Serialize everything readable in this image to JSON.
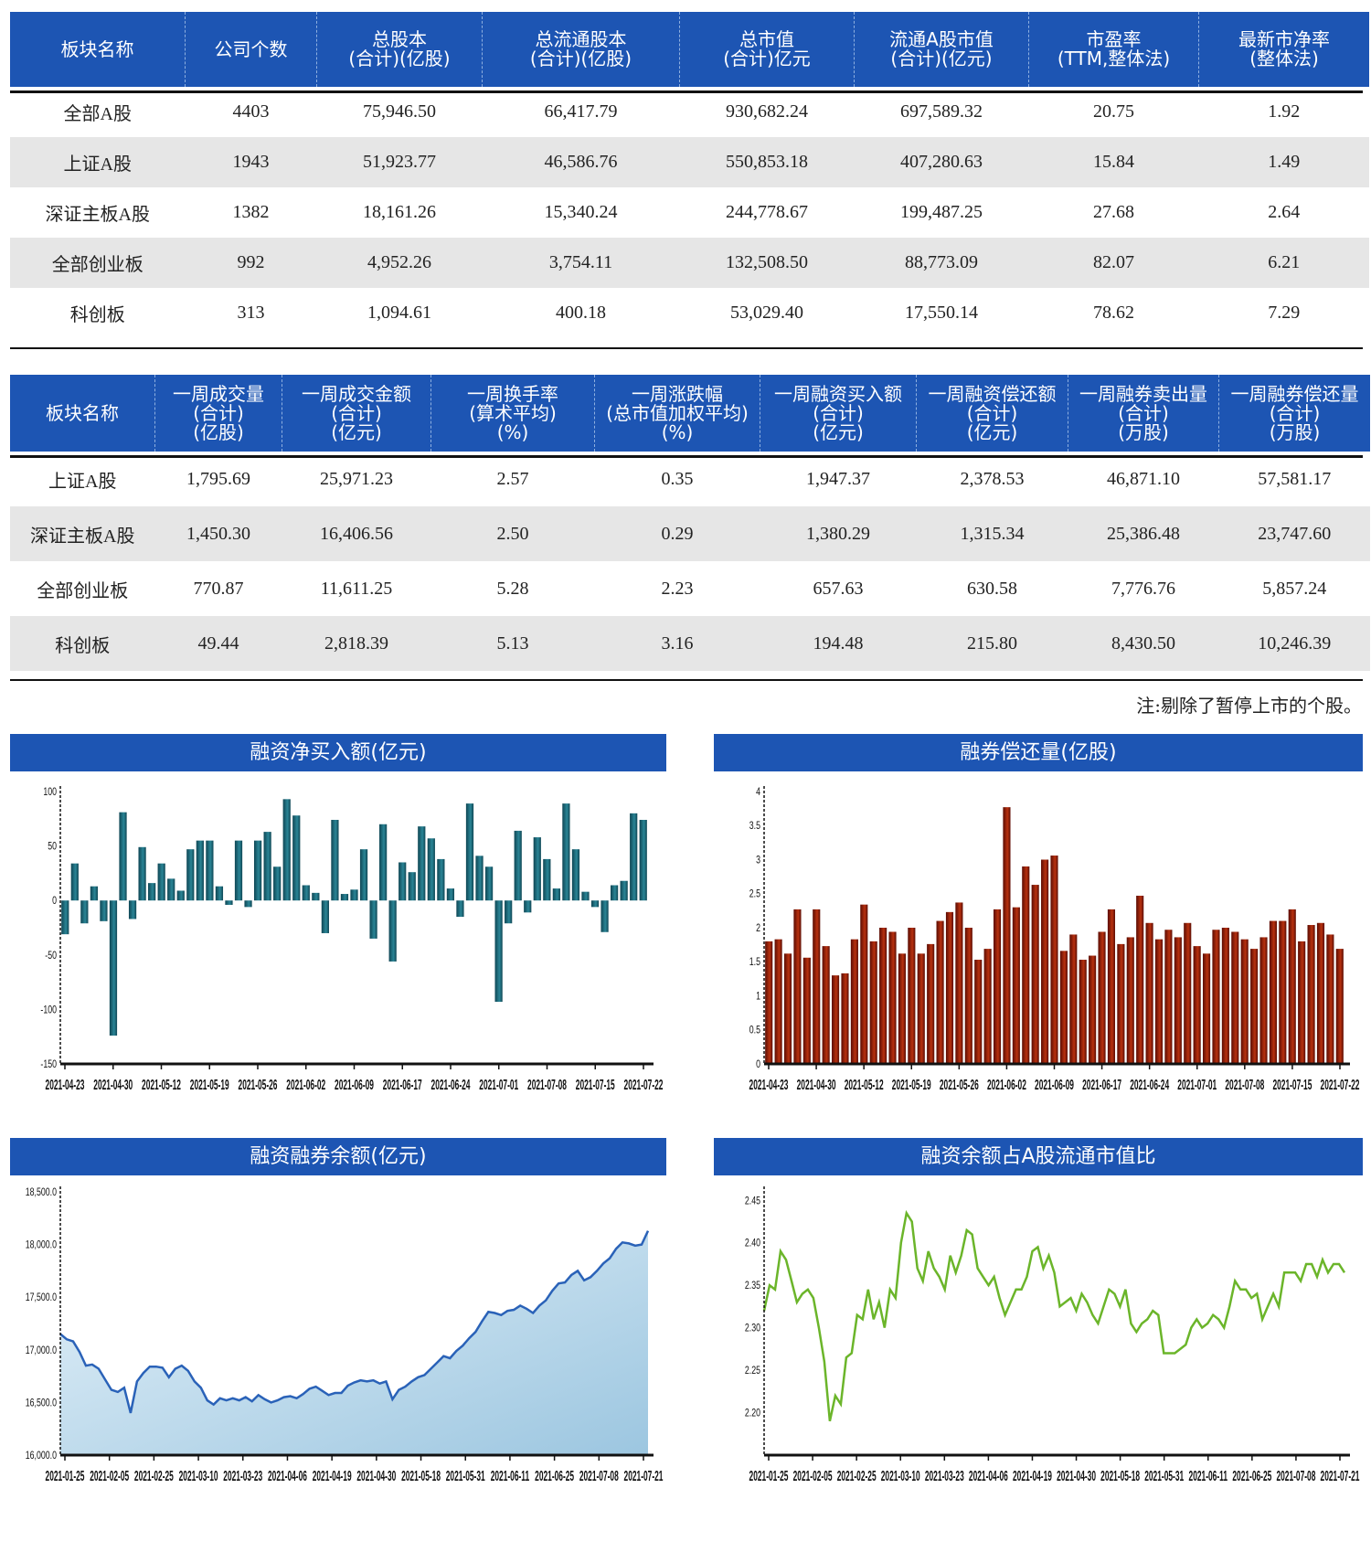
{
  "table1": {
    "headers": [
      [
        "板块名称",
        ""
      ],
      [
        "公司个数",
        ""
      ],
      [
        "总股本",
        "(合计)(亿股)"
      ],
      [
        "总流通股本",
        "(合计)(亿股)"
      ],
      [
        "总市值",
        "(合计)亿元"
      ],
      [
        "流通A股市值",
        "(合计)(亿元)"
      ],
      [
        "市盈率",
        "(TTM,整体法)"
      ],
      [
        "最新市净率",
        "(整体法)"
      ]
    ],
    "rows": [
      [
        "全部A股",
        "4403",
        "75,946.50",
        "66,417.79",
        "930,682.24",
        "697,589.32",
        "20.75",
        "1.92"
      ],
      [
        "上证A股",
        "1943",
        "51,923.77",
        "46,586.76",
        "550,853.18",
        "407,280.63",
        "15.84",
        "1.49"
      ],
      [
        "深证主板A股",
        "1382",
        "18,161.26",
        "15,340.24",
        "244,778.67",
        "199,487.25",
        "27.68",
        "2.64"
      ],
      [
        "全部创业板",
        "992",
        "4,952.26",
        "3,754.11",
        "132,508.50",
        "88,773.09",
        "82.07",
        "6.21"
      ],
      [
        "科创板",
        "313",
        "1,094.61",
        "400.18",
        "53,029.40",
        "17,550.14",
        "78.62",
        "7.29"
      ]
    ]
  },
  "table2": {
    "headers": [
      [
        "板块名称",
        "",
        ""
      ],
      [
        "一周成交量",
        "(合计)",
        "(亿股)"
      ],
      [
        "一周成交金额",
        "(合计)",
        "(亿元)"
      ],
      [
        "一周换手率",
        "(算术平均)",
        "(%)"
      ],
      [
        "一周涨跌幅",
        "(总市值加权平均)",
        "(%)"
      ],
      [
        "一周融资买入额",
        "(合计)",
        "(亿元)"
      ],
      [
        "一周融资偿还额",
        "(合计)",
        "(亿元)"
      ],
      [
        "一周融券卖出量",
        "(合计)",
        "(万股)"
      ],
      [
        "一周融券偿还量",
        "(合计)",
        "(万股)"
      ]
    ],
    "rows": [
      [
        "上证A股",
        "1,795.69",
        "25,971.23",
        "2.57",
        "0.35",
        "1,947.37",
        "2,378.53",
        "46,871.10",
        "57,581.17"
      ],
      [
        "深证主板A股",
        "1,450.30",
        "16,406.56",
        "2.50",
        "0.29",
        "1,380.29",
        "1,315.34",
        "25,386.48",
        "23,747.60"
      ],
      [
        "全部创业板",
        "770.87",
        "11,611.25",
        "5.28",
        "2.23",
        "657.63",
        "630.58",
        "7,776.76",
        "5,857.24"
      ],
      [
        "科创板",
        "49.44",
        "2,818.39",
        "5.13",
        "3.16",
        "194.48",
        "215.80",
        "8,430.50",
        "10,246.39"
      ]
    ]
  },
  "note": "注:剔除了暂停上市的个股。",
  "colors": {
    "header": "#1d55b3",
    "bar_teal": "#1f6e7e",
    "bar_red": "#8b1a0a",
    "line_blue": "#2a62b8",
    "line_green": "#6bb52a",
    "area_fill": "#a9cde6"
  },
  "chart_data": [
    {
      "type": "bar",
      "title": "融资净买入额(亿元)",
      "ylim": [
        -150,
        100
      ],
      "yticks": [
        100,
        50,
        0,
        -50,
        -100,
        -150
      ],
      "xticks": [
        "2021-04-23",
        "2021-04-30",
        "2021-05-12",
        "2021-05-19",
        "2021-05-26",
        "2021-06-02",
        "2021-06-09",
        "2021-06-17",
        "2021-06-24",
        "2021-07-01",
        "2021-07-08",
        "2021-07-15",
        "2021-07-22"
      ],
      "values": [
        -31,
        34,
        -21,
        13,
        -19,
        -124,
        81,
        -17,
        49,
        16,
        34,
        20,
        9,
        47,
        55,
        55,
        13,
        -4,
        55,
        -6,
        55,
        63,
        31,
        93,
        78,
        14,
        7,
        -30,
        74,
        6,
        10,
        47,
        -35,
        70,
        -56,
        35,
        26,
        68,
        57,
        38,
        11,
        -15,
        89,
        41,
        31,
        -93,
        -21,
        64,
        -11,
        58,
        38,
        11,
        89,
        47,
        8,
        -6,
        -29,
        14,
        18,
        80,
        74
      ]
    },
    {
      "type": "bar",
      "title": "融券偿还量(亿股)",
      "ylim": [
        0,
        4
      ],
      "yticks": [
        4.0,
        3.5,
        3.0,
        2.5,
        2.0,
        1.5,
        1.0,
        0.5,
        0.0
      ],
      "xticks": [
        "2021-04-23",
        "2021-04-30",
        "2021-05-12",
        "2021-05-19",
        "2021-05-26",
        "2021-06-02",
        "2021-06-09",
        "2021-06-17",
        "2021-06-24",
        "2021-07-01",
        "2021-07-08",
        "2021-07-15",
        "2021-07-22"
      ],
      "values": [
        1.8,
        1.83,
        1.62,
        2.27,
        1.56,
        2.27,
        1.73,
        1.3,
        1.33,
        1.83,
        2.34,
        1.8,
        2.0,
        1.94,
        1.62,
        2.0,
        1.62,
        1.76,
        2.1,
        2.23,
        2.37,
        2.0,
        1.53,
        1.69,
        2.27,
        3.77,
        2.3,
        2.9,
        2.63,
        3.0,
        3.06,
        1.66,
        1.9,
        1.53,
        1.59,
        1.94,
        2.27,
        1.76,
        1.86,
        2.47,
        2.07,
        1.83,
        1.97,
        1.86,
        2.07,
        1.73,
        1.62,
        1.97,
        2.0,
        1.94,
        1.83,
        1.69,
        1.86,
        2.1,
        2.1,
        2.27,
        1.8,
        2.04,
        2.07,
        1.9,
        1.69
      ]
    },
    {
      "type": "area",
      "title": "融资融券余额(亿元)",
      "ylim": [
        16000,
        18500
      ],
      "yticks": [
        "18,500.0",
        "18,000.0",
        "17,500.0",
        "17,000.0",
        "16,500.0",
        "16,000.0"
      ],
      "ytick_values": [
        18500,
        18000,
        17500,
        17000,
        16500,
        16000
      ],
      "xticks": [
        "2021-01-25",
        "2021-02-05",
        "2021-02-25",
        "2021-03-10",
        "2021-03-23",
        "2021-04-06",
        "2021-04-19",
        "2021-04-30",
        "2021-05-18",
        "2021-05-31",
        "2021-06-11",
        "2021-06-25",
        "2021-07-08",
        "2021-07-21"
      ],
      "values": [
        17150,
        17100,
        17080,
        16980,
        16850,
        16860,
        16820,
        16720,
        16620,
        16600,
        16640,
        16400,
        16700,
        16780,
        16840,
        16840,
        16830,
        16740,
        16820,
        16850,
        16800,
        16700,
        16640,
        16520,
        16480,
        16540,
        16520,
        16540,
        16520,
        16550,
        16510,
        16570,
        16530,
        16500,
        16520,
        16550,
        16560,
        16540,
        16580,
        16630,
        16650,
        16610,
        16570,
        16590,
        16590,
        16660,
        16690,
        16710,
        16700,
        16710,
        16680,
        16700,
        16530,
        16620,
        16650,
        16700,
        16740,
        16760,
        16820,
        16880,
        16940,
        16920,
        16990,
        17040,
        17110,
        17170,
        17270,
        17360,
        17350,
        17330,
        17370,
        17380,
        17420,
        17390,
        17350,
        17420,
        17470,
        17560,
        17630,
        17640,
        17710,
        17750,
        17660,
        17690,
        17750,
        17820,
        17870,
        17960,
        18020,
        18010,
        17990,
        18000,
        18130
      ]
    },
    {
      "type": "line",
      "title": "融资余额占A股流通市值比",
      "ylim": [
        2.15,
        2.46
      ],
      "yticks": [
        "2.45",
        "2.40",
        "2.35",
        "2.30",
        "2.25",
        "2.20"
      ],
      "ytick_values": [
        2.45,
        2.4,
        2.35,
        2.3,
        2.25,
        2.2
      ],
      "xticks": [
        "2021-01-25",
        "2021-02-05",
        "2021-02-25",
        "2021-03-10",
        "2021-03-23",
        "2021-04-06",
        "2021-04-19",
        "2021-04-30",
        "2021-05-18",
        "2021-05-31",
        "2021-06-11",
        "2021-06-25",
        "2021-07-08",
        "2021-07-21"
      ],
      "values": [
        2.32,
        2.35,
        2.345,
        2.39,
        2.38,
        2.355,
        2.33,
        2.34,
        2.345,
        2.335,
        2.3,
        2.26,
        2.19,
        2.22,
        2.21,
        2.265,
        2.27,
        2.315,
        2.31,
        2.345,
        2.31,
        2.33,
        2.3,
        2.345,
        2.335,
        2.4,
        2.435,
        2.425,
        2.37,
        2.355,
        2.39,
        2.37,
        2.36,
        2.345,
        2.385,
        2.365,
        2.385,
        2.415,
        2.41,
        2.37,
        2.36,
        2.35,
        2.36,
        2.335,
        2.315,
        2.33,
        2.345,
        2.345,
        2.36,
        2.39,
        2.395,
        2.37,
        2.385,
        2.365,
        2.325,
        2.33,
        2.335,
        2.32,
        2.34,
        2.33,
        2.315,
        2.305,
        2.325,
        2.345,
        2.34,
        2.325,
        2.345,
        2.305,
        2.295,
        2.305,
        2.31,
        2.32,
        2.315,
        2.27,
        2.27,
        2.27,
        2.275,
        2.28,
        2.3,
        2.31,
        2.3,
        2.305,
        2.315,
        2.31,
        2.3,
        2.325,
        2.355,
        2.345,
        2.345,
        2.335,
        2.34,
        2.31,
        2.325,
        2.34,
        2.325,
        2.365,
        2.365,
        2.365,
        2.355,
        2.375,
        2.375,
        2.36,
        2.38,
        2.365,
        2.375,
        2.375,
        2.365
      ]
    }
  ]
}
